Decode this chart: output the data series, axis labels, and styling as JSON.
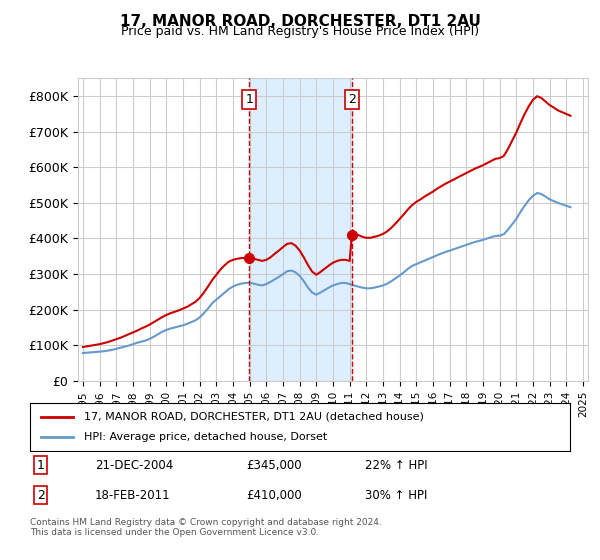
{
  "title": "17, MANOR ROAD, DORCHESTER, DT1 2AU",
  "subtitle": "Price paid vs. HM Land Registry's House Price Index (HPI)",
  "ylabel_ticks": [
    "£0",
    "£100K",
    "£200K",
    "£300K",
    "£400K",
    "£500K",
    "£600K",
    "£700K",
    "£800K"
  ],
  "ytick_values": [
    0,
    100000,
    200000,
    300000,
    400000,
    500000,
    600000,
    700000,
    800000
  ],
  "ylim": [
    0,
    850000
  ],
  "x_start_year": 1995,
  "x_end_year": 2025,
  "transaction1_date": 2004.97,
  "transaction1_price": 345000,
  "transaction1_label": "1",
  "transaction2_date": 2011.13,
  "transaction2_price": 410000,
  "transaction2_label": "2",
  "red_line_color": "#cc0000",
  "blue_line_color": "#6699cc",
  "shaded_region_color": "#ddeeff",
  "vline_color": "#cc0000",
  "background_color": "#ffffff",
  "grid_color": "#cccccc",
  "legend_label1": "17, MANOR ROAD, DORCHESTER, DT1 2AU (detached house)",
  "legend_label2": "HPI: Average price, detached house, Dorset",
  "annotation1": "1   21-DEC-2004      £345,000       22% ↑ HPI",
  "annotation2": "2   18-FEB-2011        £410,000       30% ↑ HPI",
  "footer": "Contains HM Land Registry data © Crown copyright and database right 2024.\nThis data is licensed under the Open Government Licence v3.0.",
  "hpi_data_x": [
    1995.0,
    1995.25,
    1995.5,
    1995.75,
    1996.0,
    1996.25,
    1996.5,
    1996.75,
    1997.0,
    1997.25,
    1997.5,
    1997.75,
    1998.0,
    1998.25,
    1998.5,
    1998.75,
    1999.0,
    1999.25,
    1999.5,
    1999.75,
    2000.0,
    2000.25,
    2000.5,
    2000.75,
    2001.0,
    2001.25,
    2001.5,
    2001.75,
    2002.0,
    2002.25,
    2002.5,
    2002.75,
    2003.0,
    2003.25,
    2003.5,
    2003.75,
    2004.0,
    2004.25,
    2004.5,
    2004.75,
    2005.0,
    2005.25,
    2005.5,
    2005.75,
    2006.0,
    2006.25,
    2006.5,
    2006.75,
    2007.0,
    2007.25,
    2007.5,
    2007.75,
    2008.0,
    2008.25,
    2008.5,
    2008.75,
    2009.0,
    2009.25,
    2009.5,
    2009.75,
    2010.0,
    2010.25,
    2010.5,
    2010.75,
    2011.0,
    2011.25,
    2011.5,
    2011.75,
    2012.0,
    2012.25,
    2012.5,
    2012.75,
    2013.0,
    2013.25,
    2013.5,
    2013.75,
    2014.0,
    2014.25,
    2014.5,
    2014.75,
    2015.0,
    2015.25,
    2015.5,
    2015.75,
    2016.0,
    2016.25,
    2016.5,
    2016.75,
    2017.0,
    2017.25,
    2017.5,
    2017.75,
    2018.0,
    2018.25,
    2018.5,
    2018.75,
    2019.0,
    2019.25,
    2019.5,
    2019.75,
    2020.0,
    2020.25,
    2020.5,
    2020.75,
    2021.0,
    2021.25,
    2021.5,
    2021.75,
    2022.0,
    2022.25,
    2022.5,
    2022.75,
    2023.0,
    2023.25,
    2023.5,
    2023.75,
    2024.0,
    2024.25
  ],
  "hpi_data_y": [
    78000,
    79000,
    80000,
    81000,
    82000,
    83000,
    85000,
    87000,
    90000,
    93000,
    96000,
    99000,
    103000,
    107000,
    110000,
    113000,
    118000,
    124000,
    131000,
    138000,
    143000,
    147000,
    150000,
    153000,
    156000,
    160000,
    165000,
    170000,
    178000,
    190000,
    203000,
    218000,
    228000,
    238000,
    248000,
    258000,
    265000,
    270000,
    273000,
    275000,
    276000,
    273000,
    270000,
    268000,
    272000,
    278000,
    285000,
    292000,
    300000,
    308000,
    310000,
    305000,
    295000,
    280000,
    262000,
    248000,
    242000,
    248000,
    255000,
    262000,
    268000,
    272000,
    275000,
    275000,
    272000,
    268000,
    265000,
    262000,
    260000,
    260000,
    262000,
    265000,
    268000,
    273000,
    280000,
    288000,
    296000,
    305000,
    315000,
    323000,
    328000,
    333000,
    338000,
    343000,
    348000,
    353000,
    358000,
    362000,
    366000,
    370000,
    374000,
    378000,
    382000,
    386000,
    390000,
    393000,
    396000,
    400000,
    404000,
    407000,
    408000,
    412000,
    425000,
    440000,
    455000,
    475000,
    492000,
    508000,
    520000,
    528000,
    525000,
    518000,
    510000,
    505000,
    500000,
    496000,
    492000,
    488000
  ],
  "red_data_x": [
    1995.0,
    1995.25,
    1995.5,
    1995.75,
    1996.0,
    1996.25,
    1996.5,
    1996.75,
    1997.0,
    1997.25,
    1997.5,
    1997.75,
    1998.0,
    1998.25,
    1998.5,
    1998.75,
    1999.0,
    1999.25,
    1999.5,
    1999.75,
    2000.0,
    2000.25,
    2000.5,
    2000.75,
    2001.0,
    2001.25,
    2001.5,
    2001.75,
    2002.0,
    2002.25,
    2002.5,
    2002.75,
    2003.0,
    2003.25,
    2003.5,
    2003.75,
    2004.0,
    2004.25,
    2004.5,
    2004.75,
    2004.97,
    2005.0,
    2005.25,
    2005.5,
    2005.75,
    2006.0,
    2006.25,
    2006.5,
    2006.75,
    2007.0,
    2007.25,
    2007.5,
    2007.75,
    2008.0,
    2008.25,
    2008.5,
    2008.75,
    2009.0,
    2009.25,
    2009.5,
    2009.75,
    2010.0,
    2010.25,
    2010.5,
    2010.75,
    2011.0,
    2011.13,
    2011.25,
    2011.5,
    2011.75,
    2012.0,
    2012.25,
    2012.5,
    2012.75,
    2013.0,
    2013.25,
    2013.5,
    2013.75,
    2014.0,
    2014.25,
    2014.5,
    2014.75,
    2015.0,
    2015.25,
    2015.5,
    2015.75,
    2016.0,
    2016.25,
    2016.5,
    2016.75,
    2017.0,
    2017.25,
    2017.5,
    2017.75,
    2018.0,
    2018.25,
    2018.5,
    2018.75,
    2019.0,
    2019.25,
    2019.5,
    2019.75,
    2020.0,
    2020.25,
    2020.5,
    2020.75,
    2021.0,
    2021.25,
    2021.5,
    2021.75,
    2022.0,
    2022.25,
    2022.5,
    2022.75,
    2023.0,
    2023.25,
    2023.5,
    2023.75,
    2024.0,
    2024.25
  ],
  "red_data_y": [
    95000,
    97000,
    99000,
    101000,
    103000,
    106000,
    109000,
    113000,
    117000,
    121000,
    126000,
    131000,
    136000,
    141000,
    147000,
    152000,
    158000,
    165000,
    172000,
    179000,
    185000,
    190000,
    194000,
    198000,
    203000,
    208000,
    215000,
    222000,
    233000,
    248000,
    265000,
    283000,
    298000,
    313000,
    325000,
    335000,
    340000,
    343000,
    345000,
    345000,
    345000,
    346000,
    343000,
    340000,
    337000,
    340000,
    347000,
    357000,
    366000,
    376000,
    385000,
    387000,
    380000,
    366000,
    347000,
    325000,
    307000,
    298000,
    306000,
    315000,
    324000,
    332000,
    337000,
    340000,
    340000,
    337000,
    410000,
    415000,
    410000,
    405000,
    402000,
    402000,
    405000,
    408000,
    413000,
    420000,
    430000,
    442000,
    455000,
    468000,
    482000,
    494000,
    503000,
    510000,
    518000,
    525000,
    532000,
    540000,
    547000,
    554000,
    560000,
    566000,
    572000,
    578000,
    584000,
    590000,
    596000,
    601000,
    606000,
    612000,
    618000,
    624000,
    626000,
    632000,
    652000,
    675000,
    698000,
    725000,
    750000,
    772000,
    790000,
    800000,
    795000,
    785000,
    775000,
    768000,
    760000,
    755000,
    750000,
    745000
  ]
}
